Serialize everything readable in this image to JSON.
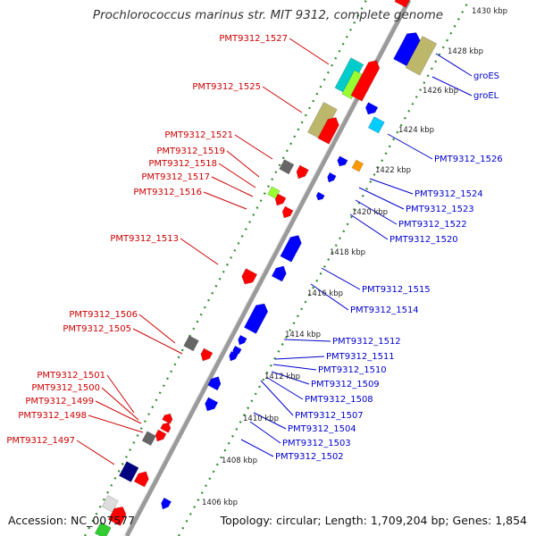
{
  "title": "Prochlorococcus marinus str. MIT 9312, complete genome",
  "footer": {
    "accession": "Accession: NC_007577",
    "summary": "Topology: circular; Length: 1,709,204 bp; Genes: 1,854"
  },
  "colors": {
    "backbone": "#9a9a9a",
    "tick_dots": "#2e8b2e",
    "reverse_label": "#cc0000",
    "forward_label": "#0000cc",
    "red_gene": "#ff0000",
    "blue_gene": "#0000ff",
    "gray_gene": "#666666",
    "navy_gene": "#000080",
    "khaki_gene": "#bdb76b",
    "cyan_gene": "#00cccc",
    "lime_gene": "#99ff33",
    "orange_gene": "#ff9900"
  },
  "kbp_labels": [
    "1430 kbp",
    "1428 kbp",
    "1426 kbp",
    "1424 kbp",
    "1422 kbp",
    "1420 kbp",
    "1418 kbp",
    "1416 kbp",
    "1414 kbp",
    "1412 kbp",
    "1410 kbp",
    "1408 kbp",
    "1406 kbp"
  ],
  "reverse_genes": [
    "PMT9312_1527",
    "PMT9312_1525",
    "PMT9312_1521",
    "PMT9312_1519",
    "PMT9312_1518",
    "PMT9312_1517",
    "PMT9312_1516",
    "PMT9312_1513",
    "PMT9312_1506",
    "PMT9312_1505",
    "PMT9312_1501",
    "PMT9312_1500",
    "PMT9312_1499",
    "PMT9312_1498",
    "PMT9312_1497"
  ],
  "forward_genes": [
    "groES",
    "groEL",
    "PMT9312_1526",
    "PMT9312_1524",
    "PMT9312_1523",
    "PMT9312_1522",
    "PMT9312_1520",
    "PMT9312_1515",
    "PMT9312_1514",
    "PMT9312_1512",
    "PMT9312_1511",
    "PMT9312_1510",
    "PMT9312_1509",
    "PMT9312_1508",
    "PMT9312_1507",
    "PMT9312_1504",
    "PMT9312_1503",
    "PMT9312_1502"
  ]
}
